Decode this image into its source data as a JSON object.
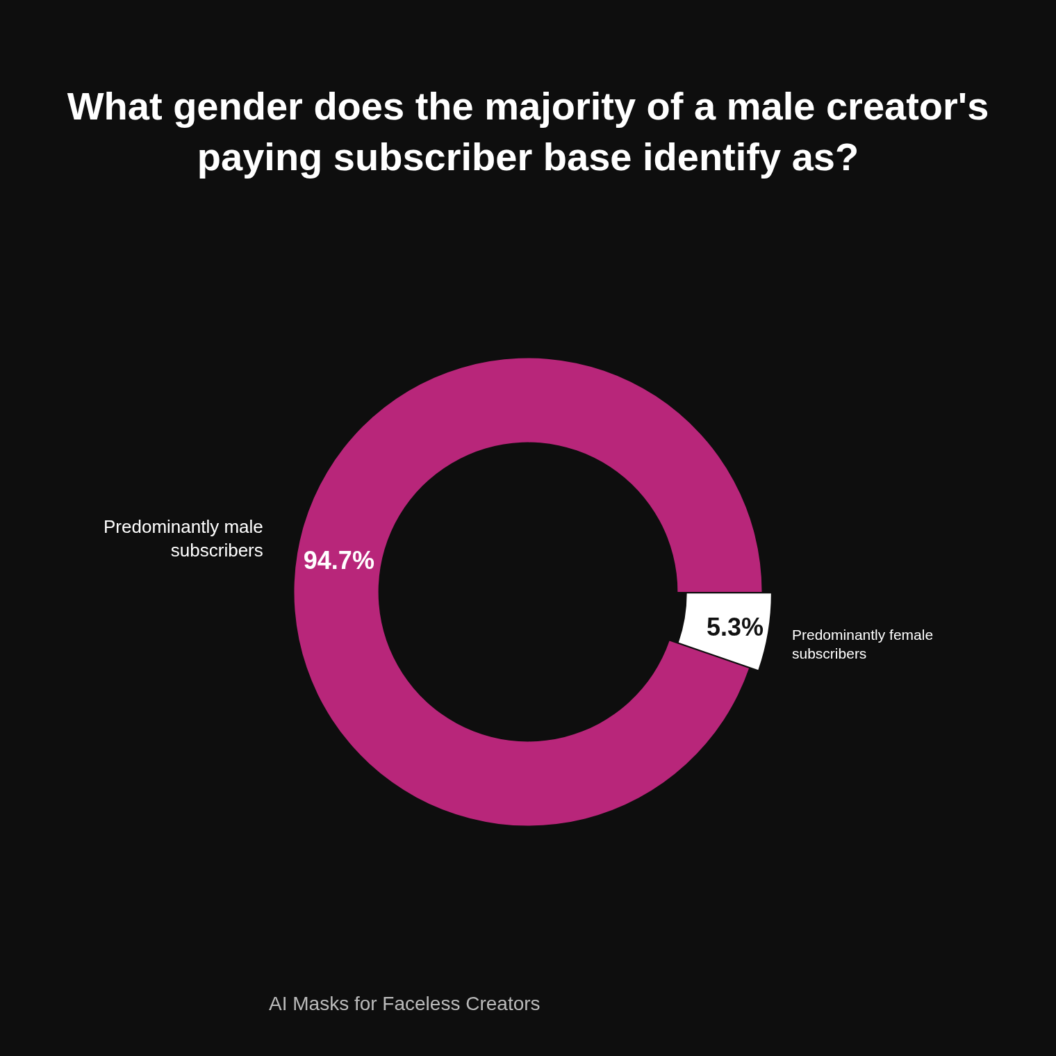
{
  "chart_data": {
    "type": "donut",
    "title": "What gender does the majority of a male creator's paying subscriber base identify as?",
    "categories": [
      "Predominantly male subscribers",
      "Predominantly female subscribers"
    ],
    "values": [
      94.7,
      5.3
    ],
    "value_labels": [
      "94.7%",
      "5.3%"
    ],
    "colors": [
      "#b8267a",
      "#ffffff"
    ],
    "legend": false,
    "annotations": [
      "AI Masks for Faceless Creators"
    ]
  }
}
